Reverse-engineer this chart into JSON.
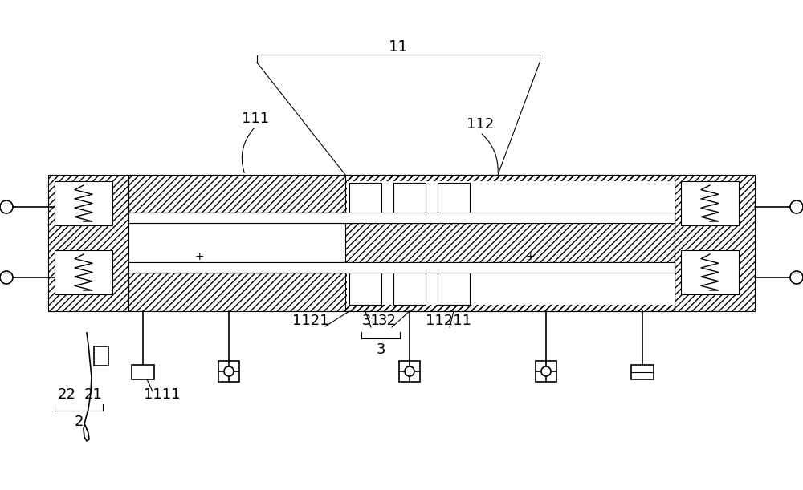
{
  "bg_color": "#ffffff",
  "line_color": "#000000",
  "fig_width": 10.0,
  "fig_height": 6.11
}
